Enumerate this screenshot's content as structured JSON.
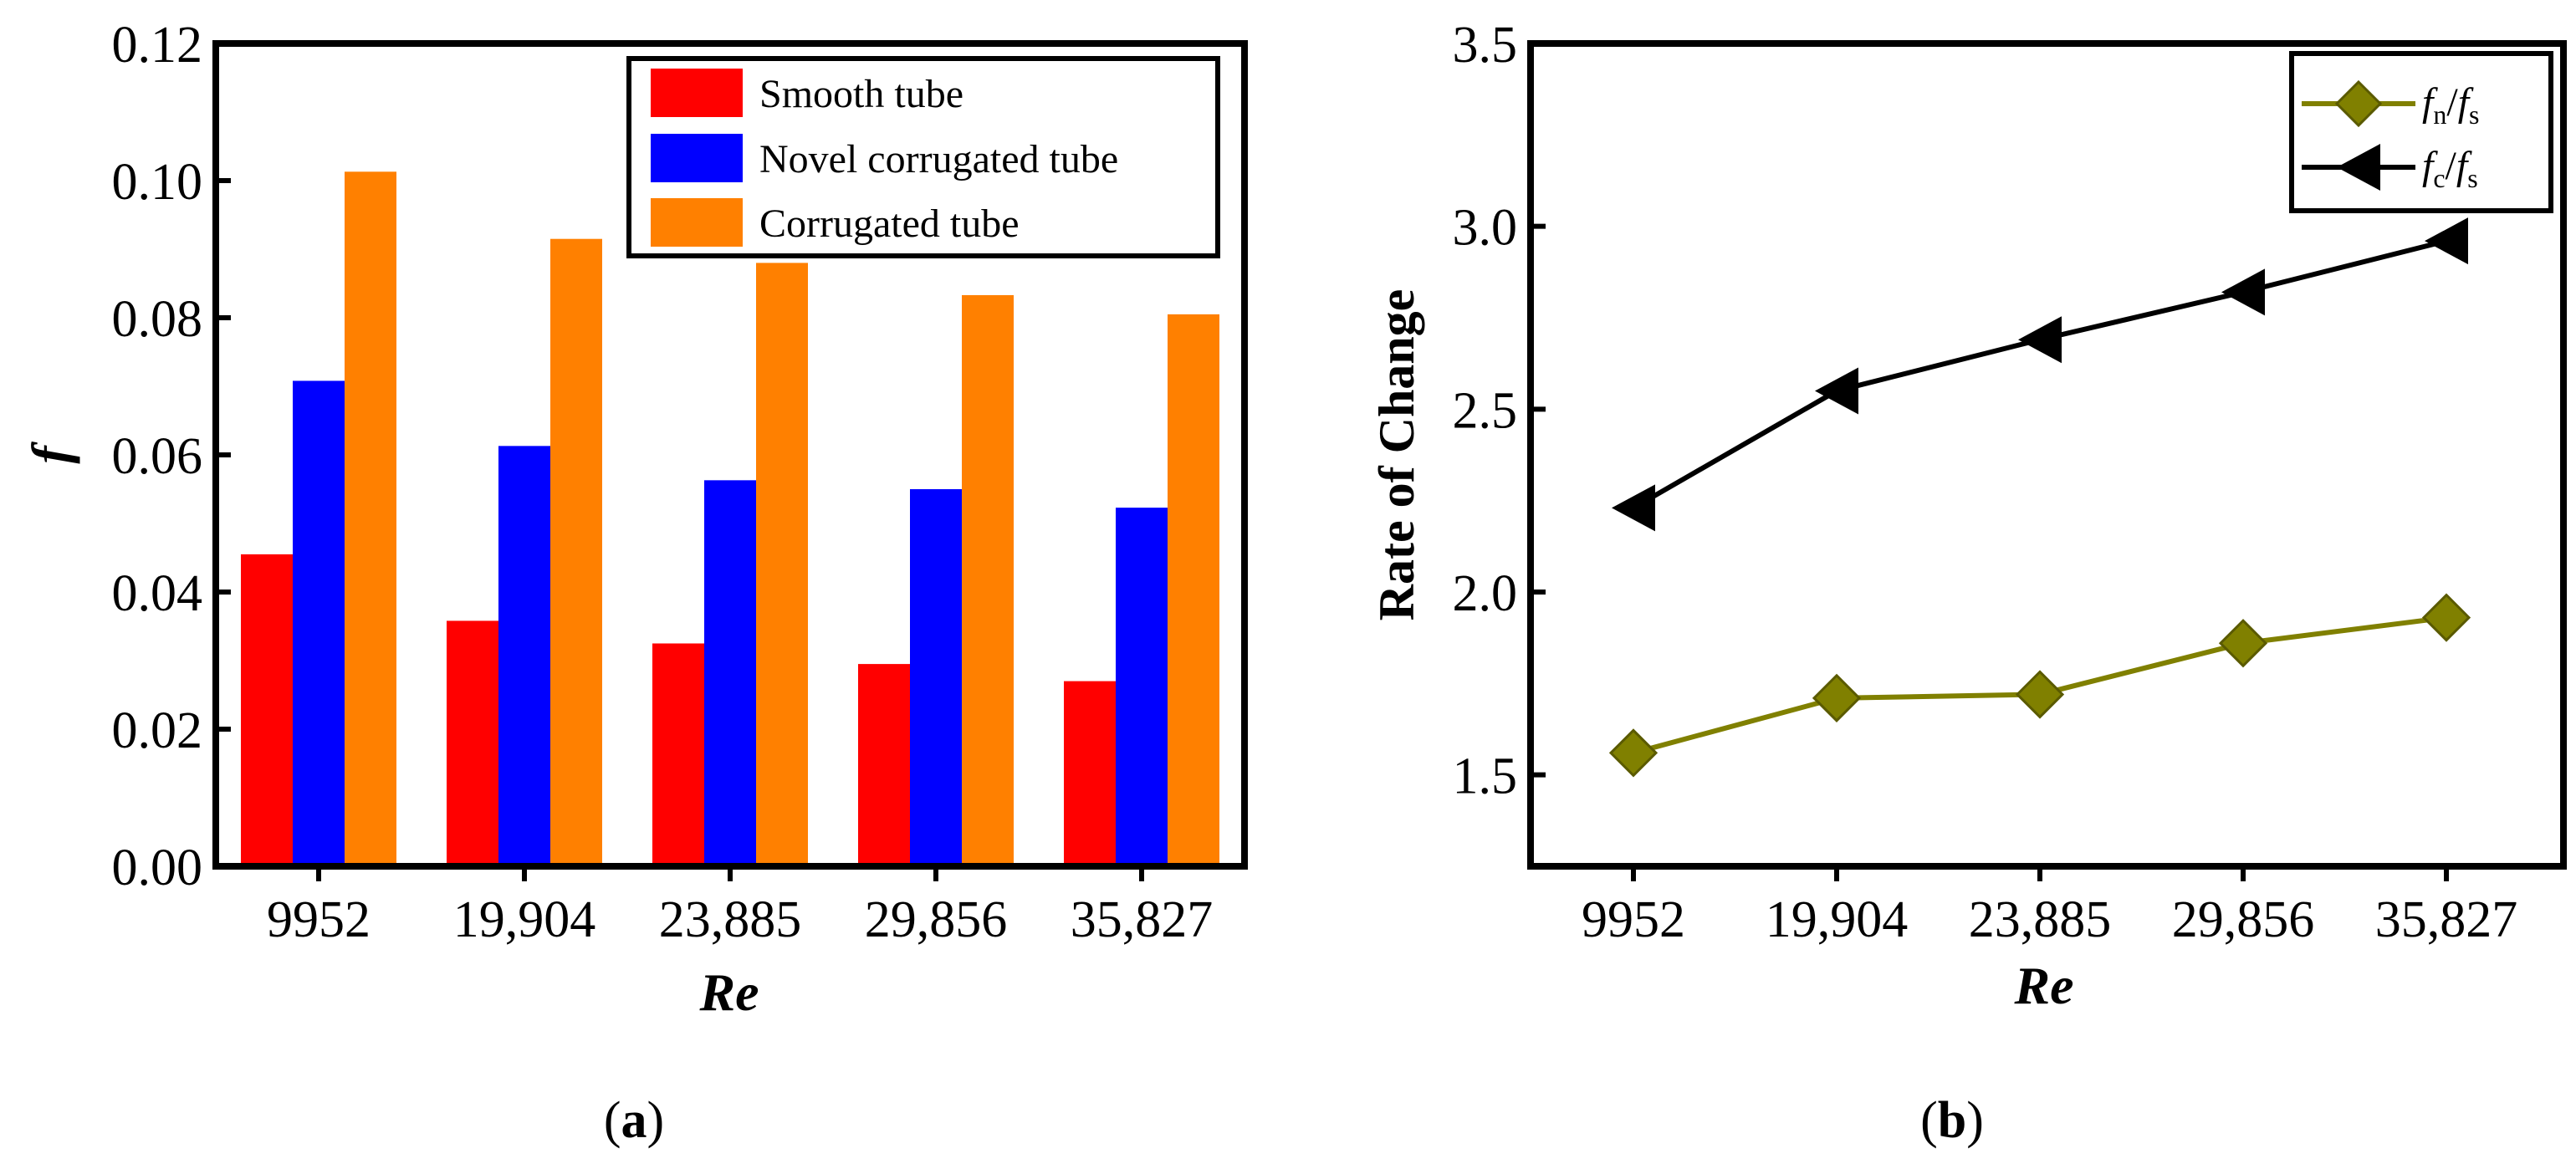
{
  "chart_data": [
    {
      "panel": "(a)",
      "type": "bar",
      "title": "",
      "xlabel": "Re",
      "ylabel": "f",
      "ylim": [
        0,
        0.12
      ],
      "yticks": [
        "0.00",
        "0.02",
        "0.04",
        "0.06",
        "0.08",
        "0.10",
        "0.12"
      ],
      "categories": [
        "9952",
        "19,904",
        "23,885",
        "29,856",
        "35,827"
      ],
      "series": [
        {
          "name": "Smooth tube",
          "color": "#ff0000",
          "values": [
            0.0455,
            0.0358,
            0.0325,
            0.0295,
            0.027
          ]
        },
        {
          "name": "Novel corrugated tube",
          "color": "#0000ff",
          "values": [
            0.0708,
            0.0613,
            0.0563,
            0.055,
            0.0523
          ]
        },
        {
          "name": "Corrugated tube",
          "color": "#ff8000",
          "values": [
            0.1013,
            0.0915,
            0.088,
            0.0833,
            0.0805
          ]
        }
      ],
      "legend": "top-right",
      "caption_prefix": "(",
      "caption_letter": "a",
      "caption_suffix": ")"
    },
    {
      "panel": "(b)",
      "type": "line",
      "title": "",
      "xlabel": "Re",
      "ylabel": "Rate of Change",
      "ylim": [
        1.25,
        3.5
      ],
      "yticks": [
        "1.5",
        "2.0",
        "2.5",
        "3.0",
        "3.5"
      ],
      "categories": [
        "9952",
        "19,904",
        "23,885",
        "29,856",
        "35,827"
      ],
      "series": [
        {
          "name_main": "f",
          "name_sub": "n",
          "name_sep": "/",
          "name_main2": "f",
          "name_sub2": "s",
          "color": "#808000",
          "marker": "diamond",
          "values": [
            1.56,
            1.71,
            1.72,
            1.86,
            1.93
          ]
        },
        {
          "name_main": "f",
          "name_sub": "c",
          "name_sep": "/",
          "name_main2": "f",
          "name_sub2": "s",
          "color": "#000000",
          "marker": "triangle-left",
          "values": [
            2.23,
            2.55,
            2.69,
            2.82,
            2.96
          ]
        }
      ],
      "legend": "top-right",
      "caption_prefix": "(",
      "caption_letter": "b",
      "caption_suffix": ")"
    }
  ]
}
